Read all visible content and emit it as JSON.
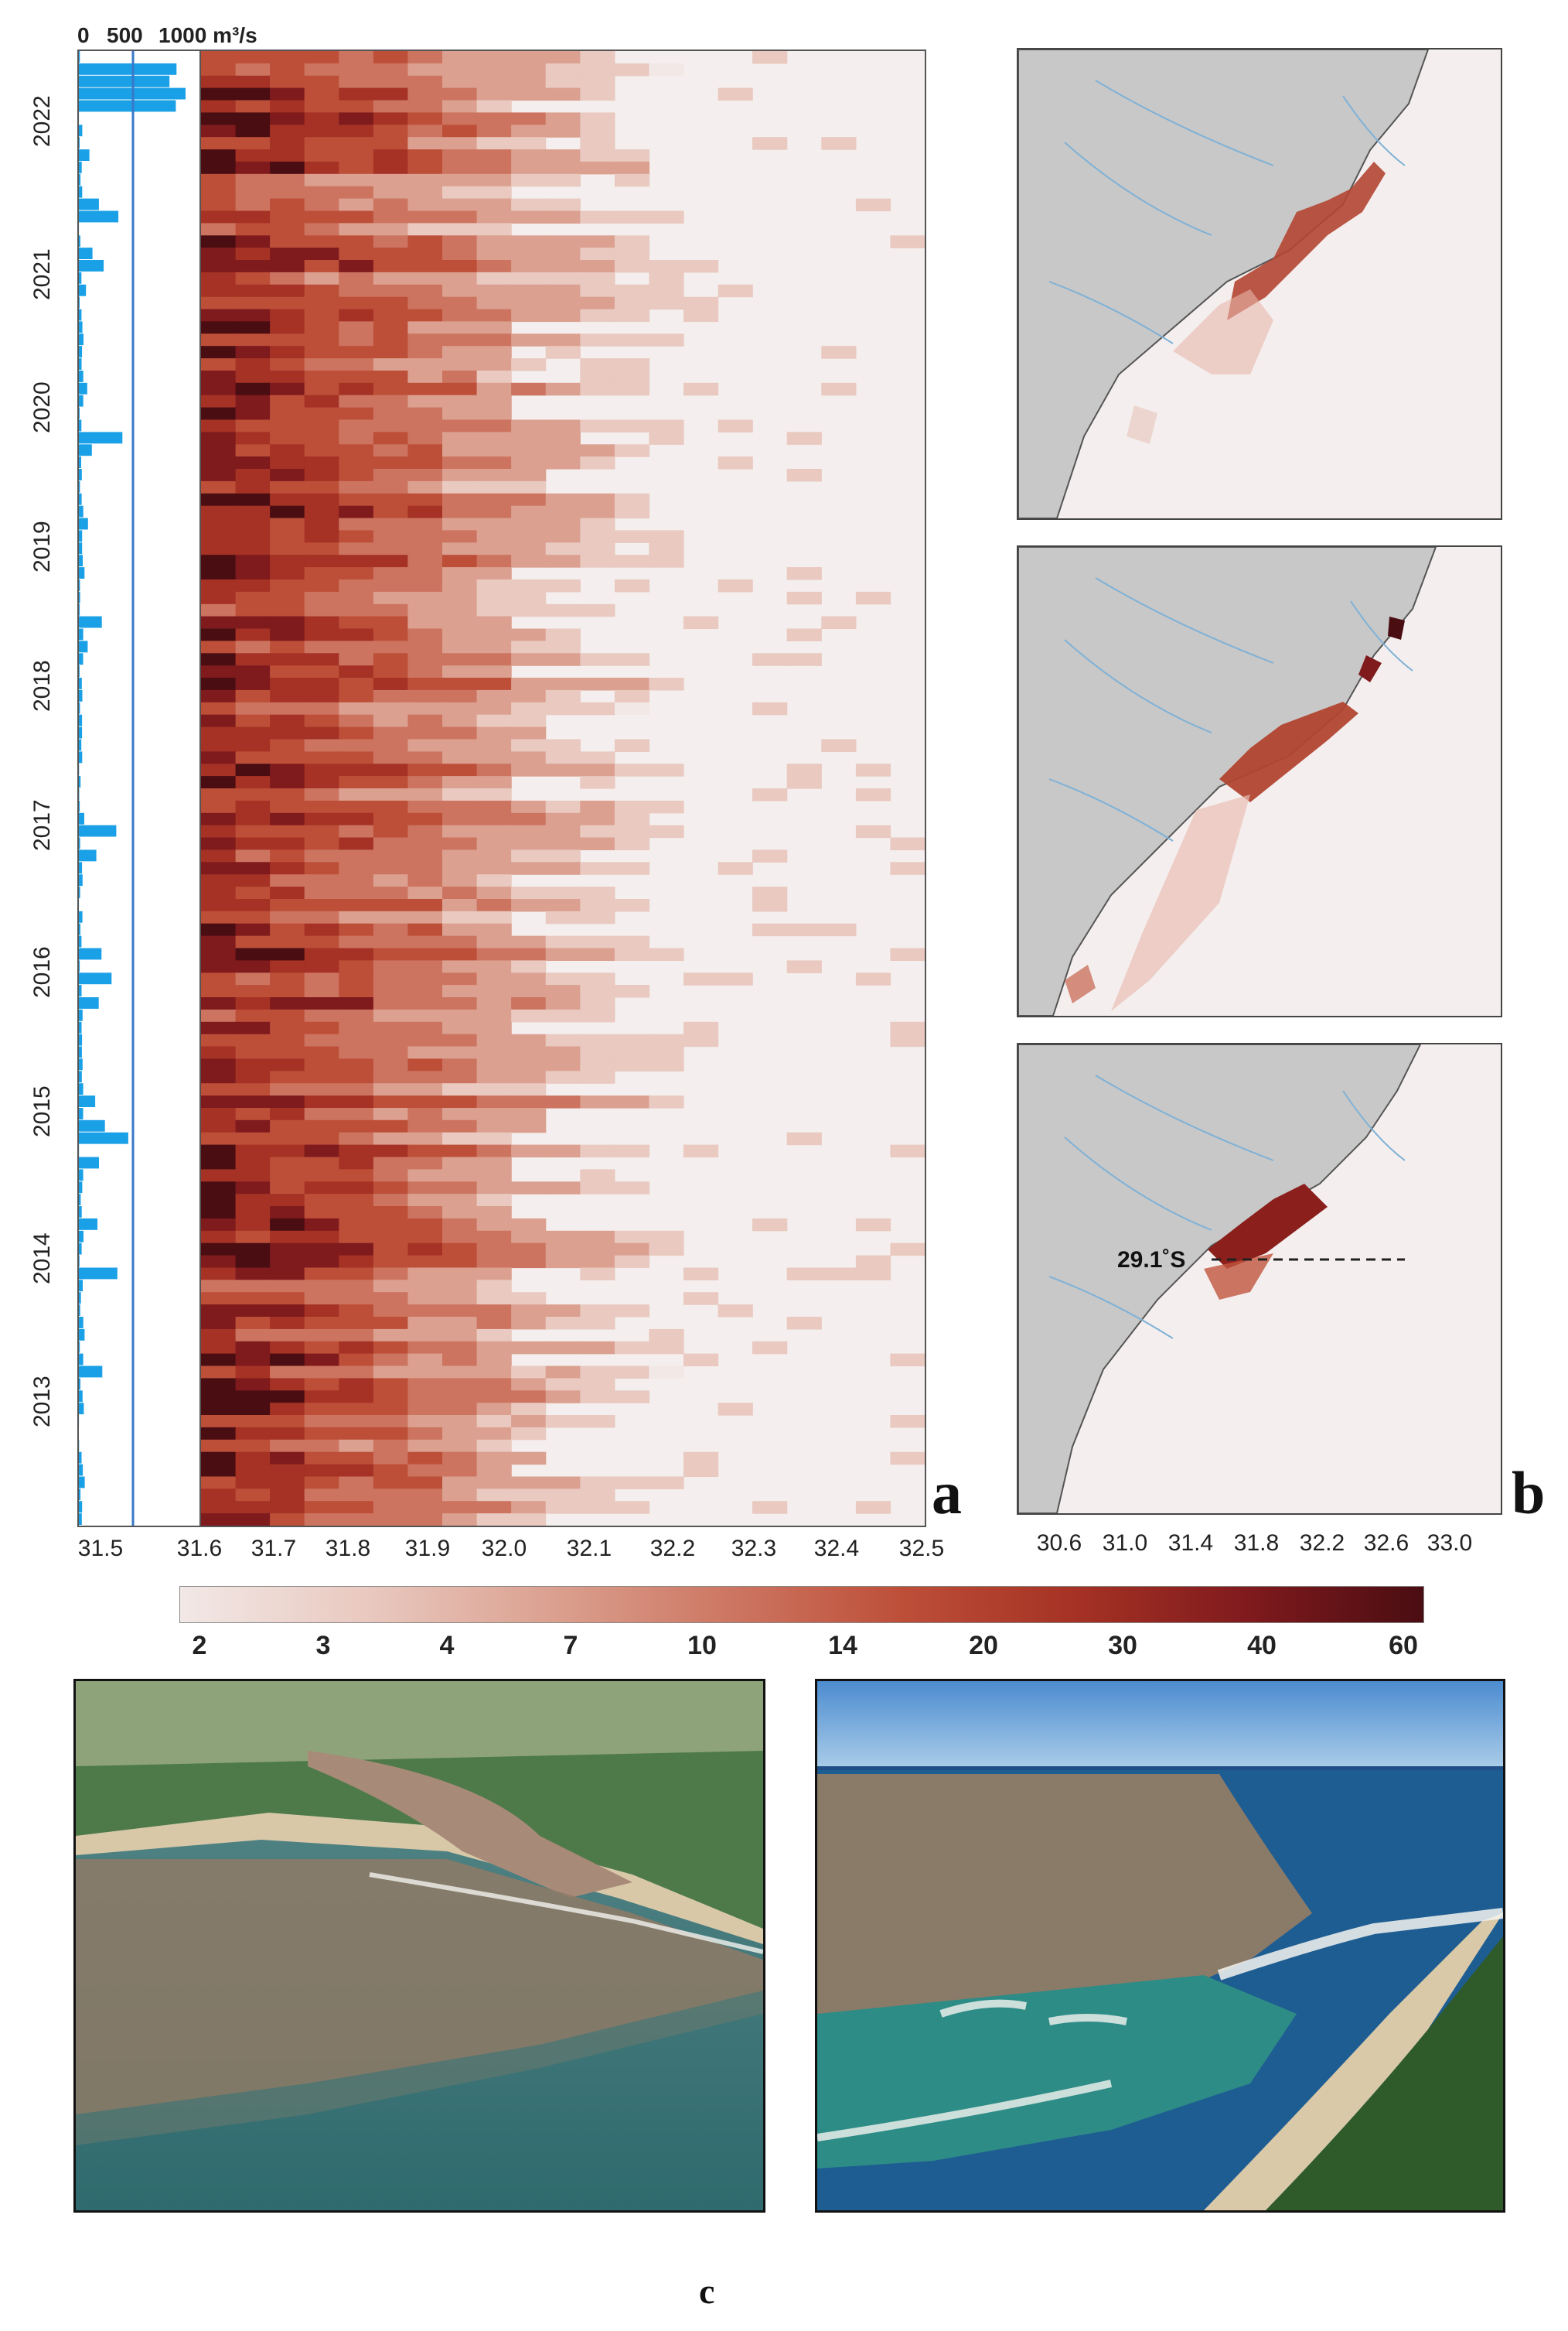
{
  "panel_a": {
    "discharge_scale": {
      "label_0": "0",
      "label_500": "500",
      "label_1000": "1000 m³/s"
    },
    "years": [
      "2022",
      "2021",
      "2020",
      "2019",
      "2018",
      "2017",
      "2016",
      "2015",
      "2014",
      "2013"
    ],
    "x_ticks": [
      "31.5",
      "31.6",
      "31.7",
      "31.8",
      "31.9",
      "32.0",
      "32.1",
      "32.2",
      "32.3",
      "32.4",
      "32.5"
    ],
    "letter": "a"
  },
  "panel_b": {
    "x_ticks": [
      "30.6",
      "31.0",
      "31.4",
      "31.8",
      "32.2",
      "32.6",
      "33.0"
    ],
    "latitude_label": "29.1˚S",
    "letter": "b"
  },
  "colorbar": {
    "labels": [
      "2",
      "3",
      "4",
      "7",
      "10",
      "14",
      "20",
      "30",
      "40",
      "60"
    ],
    "colors": [
      "#f2e8e6",
      "#e9c9c0",
      "#dba08f",
      "#cc7460",
      "#bd4f39",
      "#a53224",
      "#7f1a1d",
      "#4a0d12"
    ]
  },
  "panel_c": {
    "letter": "c"
  },
  "chart_data": {
    "type": "heatmap",
    "x_range": [
      31.6,
      32.5
    ],
    "y_range": [
      "2012",
      "2022"
    ],
    "colorbar_range": [
      2,
      60
    ],
    "discharge_axis": [
      0,
      1000
    ]
  }
}
